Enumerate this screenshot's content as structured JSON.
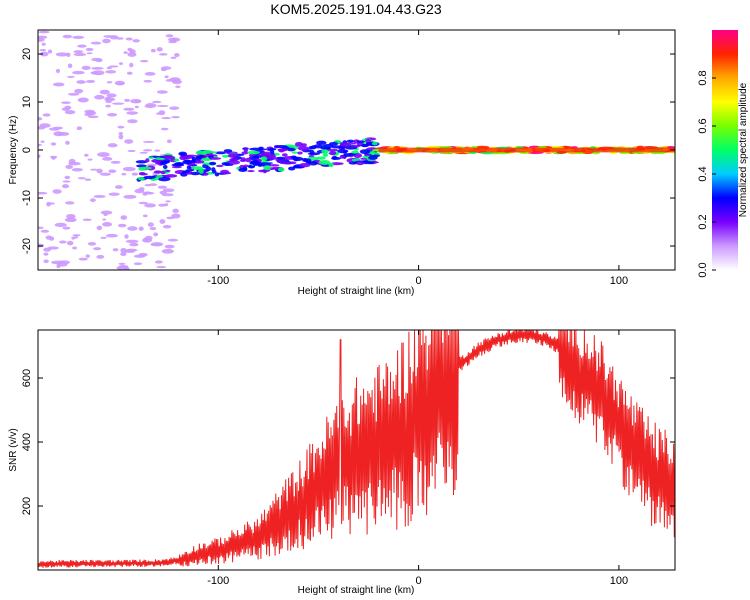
{
  "figure": {
    "title": "KOM5.2025.191.04.43.G23"
  },
  "colorbar": {
    "label": "Normalized spectral amplitude",
    "ticks": [
      "0.0",
      "0.2",
      "0.4",
      "0.6",
      "0.8"
    ],
    "range": [
      0,
      1
    ],
    "colors": [
      "#ffffff",
      "#cc99ff",
      "#7700ff",
      "#0000ff",
      "#00ccff",
      "#00ff66",
      "#77ff00",
      "#ffff00",
      "#ffaa00",
      "#ff2200",
      "#ff0088"
    ]
  },
  "chart_data": [
    {
      "type": "heatmap",
      "xlabel": "Height of straight line (km)",
      "ylabel": "Frequency (Hz)",
      "xlim": [
        -190,
        128
      ],
      "ylim": [
        -25,
        25
      ],
      "xticks": [
        "-100",
        "0",
        "100"
      ],
      "yticks": [
        "-20",
        "-10",
        "0",
        "10",
        "20"
      ],
      "regions": [
        {
          "desc": "scattered weak noise",
          "x": [
            -190,
            -120
          ],
          "y": [
            -25,
            25
          ],
          "amplitude": 0.1
        },
        {
          "desc": "broadened signal band",
          "x": [
            -140,
            -20
          ],
          "y": [
            -6,
            4
          ],
          "amplitude": 0.25
        },
        {
          "desc": "concentrated line near 0 Hz",
          "x": [
            -20,
            128
          ],
          "y": [
            -1,
            1
          ],
          "amplitude": 0.9
        }
      ]
    },
    {
      "type": "line",
      "xlabel": "Height of straight line (km)",
      "ylabel": "SNR (v/v)",
      "xlim": [
        -190,
        128
      ],
      "ylim": [
        0,
        750
      ],
      "xticks": [
        "-100",
        "0",
        "100"
      ],
      "yticks": [
        "200",
        "400",
        "600"
      ],
      "series": [
        {
          "color": "#ee2222",
          "x": [
            -190,
            -170,
            -150,
            -130,
            -120,
            -110,
            -100,
            -90,
            -80,
            -70,
            -60,
            -50,
            -40,
            -30,
            -20,
            -10,
            0,
            10,
            20,
            30,
            40,
            50,
            60,
            70,
            80,
            90,
            100,
            110,
            120,
            128
          ],
          "y": [
            18,
            20,
            20,
            22,
            30,
            50,
            60,
            80,
            100,
            150,
            200,
            260,
            320,
            360,
            380,
            420,
            480,
            560,
            640,
            690,
            720,
            735,
            730,
            700,
            620,
            560,
            450,
            350,
            280,
            260
          ]
        }
      ],
      "annotations": [
        {
          "desc": "isolated spike",
          "x": -39,
          "y": 720
        }
      ]
    }
  ]
}
